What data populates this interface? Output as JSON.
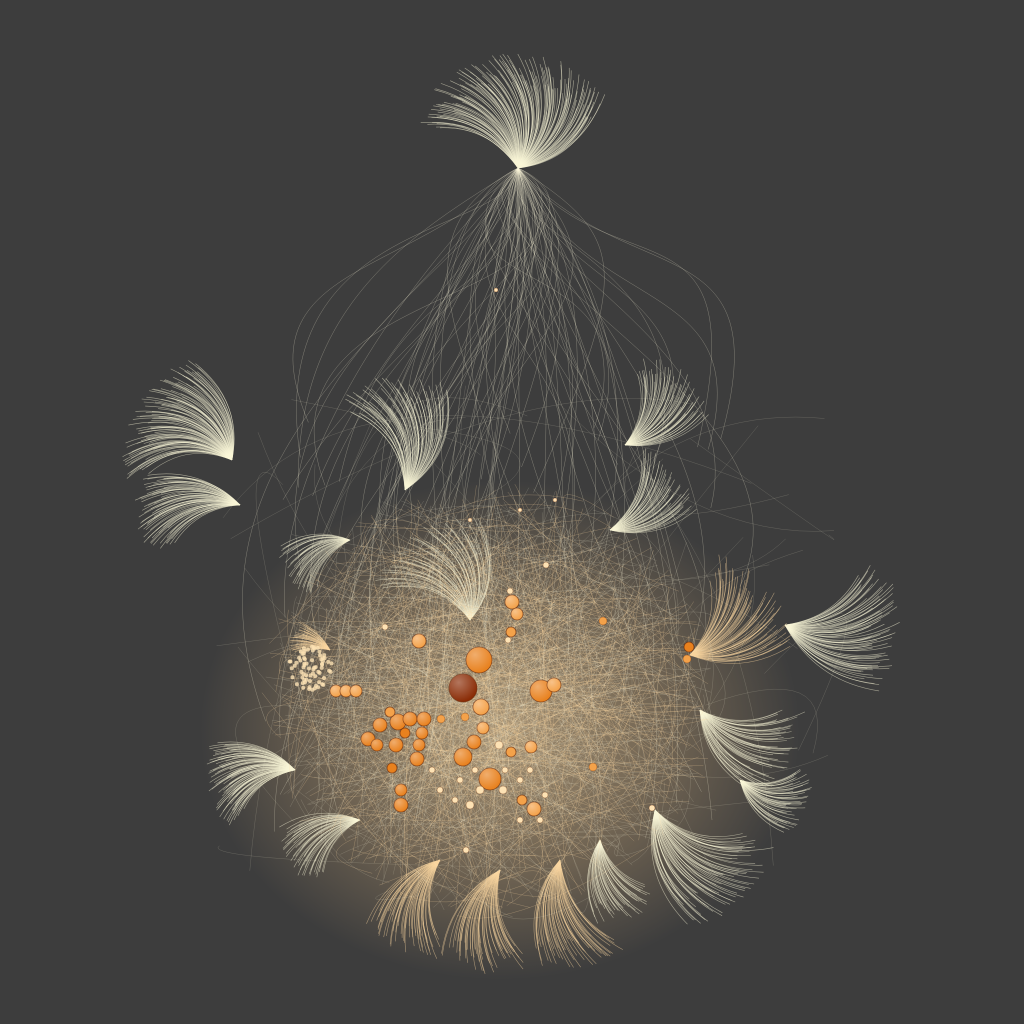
{
  "diagram": {
    "type": "network-graph",
    "layout": "force-directed",
    "labels": [],
    "colors": {
      "background": "#3d3d3d",
      "edge_light": "#fbf7d9",
      "edge_warm": "#fbd7a0",
      "node_light": "#fde2b4",
      "node_mid": "#f4a24a",
      "node_orange": "#e8811e",
      "node_dark": "#8a2c06",
      "node_stroke": "#6b2a08"
    }
  }
}
